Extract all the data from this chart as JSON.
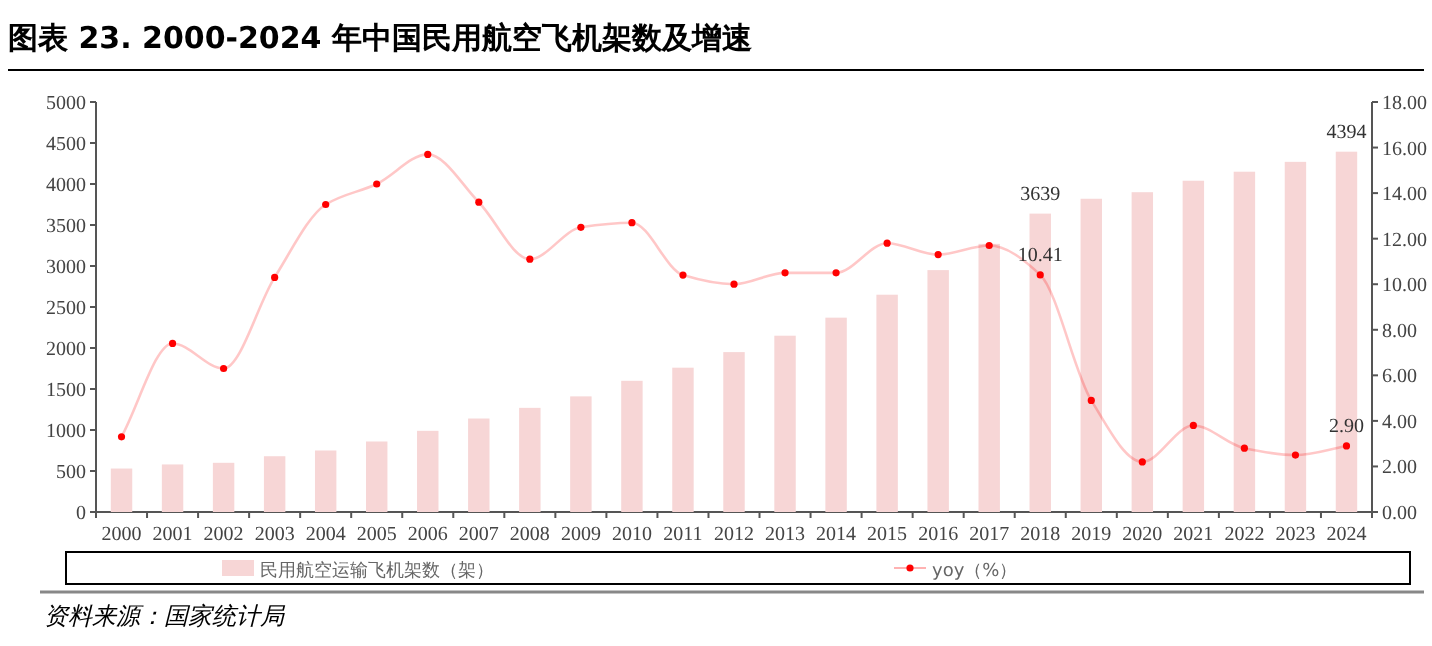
{
  "chart_data": {
    "type": "bar",
    "title": "图表 23. 2000-2024 年中国民用航空飞机架数及增速",
    "categories": [
      "2000",
      "2001",
      "2002",
      "2003",
      "2004",
      "2005",
      "2006",
      "2007",
      "2008",
      "2009",
      "2010",
      "2011",
      "2012",
      "2013",
      "2014",
      "2015",
      "2016",
      "2017",
      "2018",
      "2019",
      "2020",
      "2021",
      "2022",
      "2023",
      "2024"
    ],
    "series": [
      {
        "name": "民用航空运输飞机架数（架）",
        "color": "#f7d6d6",
        "values": [
          530,
          580,
          600,
          680,
          750,
          860,
          990,
          1140,
          1270,
          1410,
          1600,
          1760,
          1950,
          2150,
          2370,
          2650,
          2950,
          3270,
          3639,
          3820,
          3900,
          4040,
          4150,
          4270,
          4394
        ],
        "value_labels": [
          null,
          null,
          null,
          null,
          null,
          null,
          null,
          null,
          null,
          null,
          null,
          null,
          null,
          null,
          null,
          null,
          null,
          null,
          "3639",
          null,
          null,
          null,
          null,
          null,
          "4394"
        ]
      },
      {
        "name": "yoy（%）",
        "type": "line",
        "axis": "y2",
        "color": "#ff0000",
        "marker": "circle",
        "values": [
          3.3,
          7.4,
          6.3,
          10.3,
          13.5,
          14.4,
          15.7,
          13.6,
          11.1,
          12.5,
          12.7,
          10.4,
          10.0,
          10.5,
          10.5,
          11.8,
          11.3,
          11.7,
          10.41,
          4.9,
          2.2,
          3.8,
          2.8,
          2.5,
          2.9
        ],
        "value_labels": [
          null,
          null,
          null,
          null,
          null,
          null,
          null,
          null,
          null,
          null,
          null,
          null,
          null,
          null,
          null,
          null,
          null,
          null,
          "10.41",
          null,
          null,
          null,
          null,
          null,
          "2.90"
        ]
      }
    ],
    "ylim": [
      0,
      5000
    ],
    "yticks": [
      0,
      500,
      1000,
      1500,
      2000,
      2500,
      3000,
      3500,
      4000,
      4500,
      5000
    ],
    "y2lim": [
      0,
      18
    ],
    "y2ticks": [
      {
        "value": 0,
        "label": "0.00"
      },
      {
        "value": 2,
        "label": "2.00"
      },
      {
        "value": 4,
        "label": "4.00"
      },
      {
        "value": 6,
        "label": "6.00"
      },
      {
        "value": 8,
        "label": "8.00"
      },
      {
        "value": 10,
        "label": "10.00"
      },
      {
        "value": 12,
        "label": "12.00"
      },
      {
        "value": 14,
        "label": "14.00"
      },
      {
        "value": 16,
        "label": "16.00"
      },
      {
        "value": 18,
        "label": "18.00"
      }
    ],
    "grid": false,
    "legend": "bottom",
    "annotations": [
      "资料来源：国家统计局"
    ]
  }
}
